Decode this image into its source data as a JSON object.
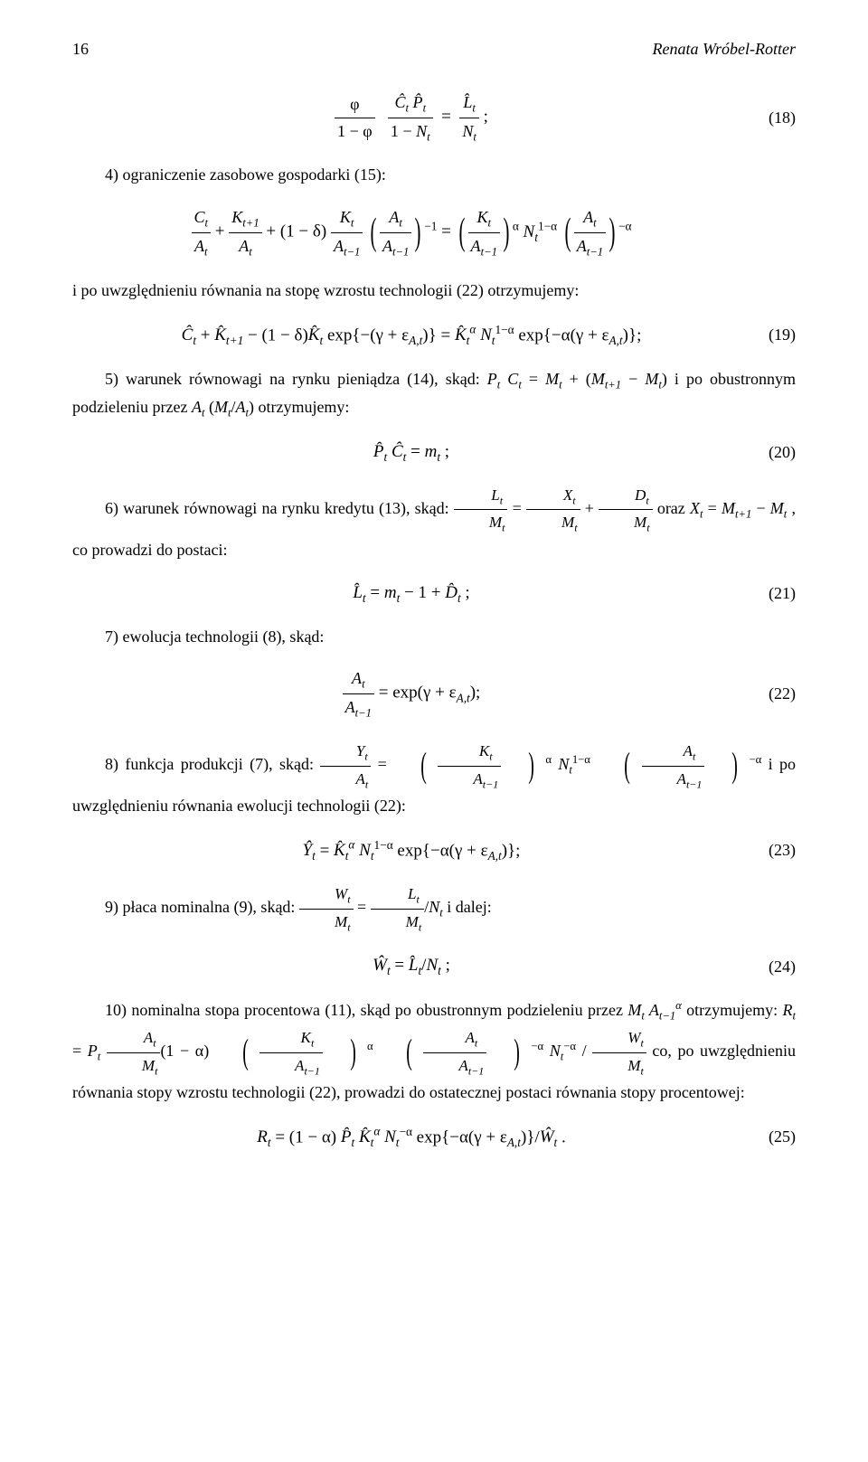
{
  "header": {
    "page_number": "16",
    "author": "Renata Wróbel-Rotter"
  },
  "paragraphs": {
    "p1": "4) ograniczenie zasobowe gospodarki (15):",
    "p2": "i po uwzględnieniu równania na stopę wzrostu technologii (22) otrzymujemy:",
    "p3a": "5) warunek równowagi na rynku pieniądza (14), skąd: ",
    "p3b": " i po obustronnym podzieleniu przez ",
    "p3c": " otrzymujemy:",
    "p4a": "6) warunek równowagi na rynku kredytu (13), skąd: ",
    "p4b": " oraz ",
    "p4c": ", co prowadzi do postaci:",
    "p5": "7) ewolucja technologii (8), skąd:",
    "p6a": "8) funkcja produkcji (7), skąd: ",
    "p6b": " i po uwzględnieniu równania ewolucji technologii (22):",
    "p7a": "9) płaca nominalna (9), skąd: ",
    "p7b": " i dalej:",
    "p8a": "10) nominalna stopa procentowa (11), skąd po obustronnym podzieleniu przez ",
    "p8b": " otrzymujemy: ",
    "p8c": " co, po uwzględnieniu równania stopy wzrostu technologii (22), prowadzi do ostatecznej postaci równania stopy procentowej:"
  },
  "eq_labels": {
    "eq18": "(18)",
    "eq19": "(19)",
    "eq20": "(20)",
    "eq21": "(21)",
    "eq22": "(22)",
    "eq23": "(23)",
    "eq24": "(24)",
    "eq25": "(25)"
  },
  "equations": {
    "eq18": "φ/(1−φ) · (Ĉₜ P̂ₜ)/(1−Nₜ) = L̂ₜ/Nₜ ;",
    "eq_unnum1": "Cₜ/Aₜ + Kₜ₊₁/Aₜ + (1−δ) Kₜ/Aₜ₋₁ (Aₜ/Aₜ₋₁)⁻¹ = (Kₜ/Aₜ₋₁)^α Nₜ^(1−α) (Aₜ/Aₜ₋₁)^(−α)",
    "eq19": "Ĉₜ + K̂ₜ₊₁ − (1−δ) K̂ₜ exp{−(γ+ε_{A,t})} = K̂ₜ^α Nₜ^(1−α) exp{−α(γ+ε_{A,t})};",
    "inline3a": "Pₜ Cₜ = Mₜ + (Mₜ₊₁ − Mₜ)",
    "inline3b": "Aₜ (Mₜ/Aₜ)",
    "eq20": "P̂ₜ Ĉₜ = mₜ ;",
    "inline4a": "Lₜ/Mₜ = Xₜ/Mₜ + Dₜ/Mₜ",
    "inline4b": "Xₜ = Mₜ₊₁ − Mₜ",
    "eq21": "L̂ₜ = mₜ − 1 + D̂ₜ ;",
    "eq22": "Aₜ/Aₜ₋₁ = exp(γ + ε_{A,t});",
    "inline6": "Yₜ/Aₜ = (Kₜ/Aₜ₋₁)^α Nₜ^(1−α) (Aₜ/Aₜ₋₁)^(−α)",
    "eq23": "Ŷₜ = K̂ₜ^α Nₜ^(1−α) exp{−α(γ+ε_{A,t})};",
    "inline7": "Wₜ/Mₜ = (Lₜ/Mₜ)/Nₜ",
    "eq24": "Ŵₜ = L̂ₜ/Nₜ ;",
    "inline8a": "Mₜ Aₜ₋₁^α",
    "inline8b": "Rₜ = Pₜ (Aₜ/Mₜ)(1−α)(Kₜ/Aₜ₋₁)^α (Aₜ/Aₜ₋₁)^(−α) Nₜ^(−α) / (Wₜ/Mₜ)",
    "eq25": "Rₜ = (1−α) P̂ₜ K̂ₜ^α Nₜ^(−α) exp{−α(γ+ε_{A,t})}/Ŵₜ ."
  },
  "style": {
    "font_family": "Times New Roman",
    "body_fontsize_pt": 13,
    "text_color": "#000000",
    "background_color": "#ffffff"
  }
}
